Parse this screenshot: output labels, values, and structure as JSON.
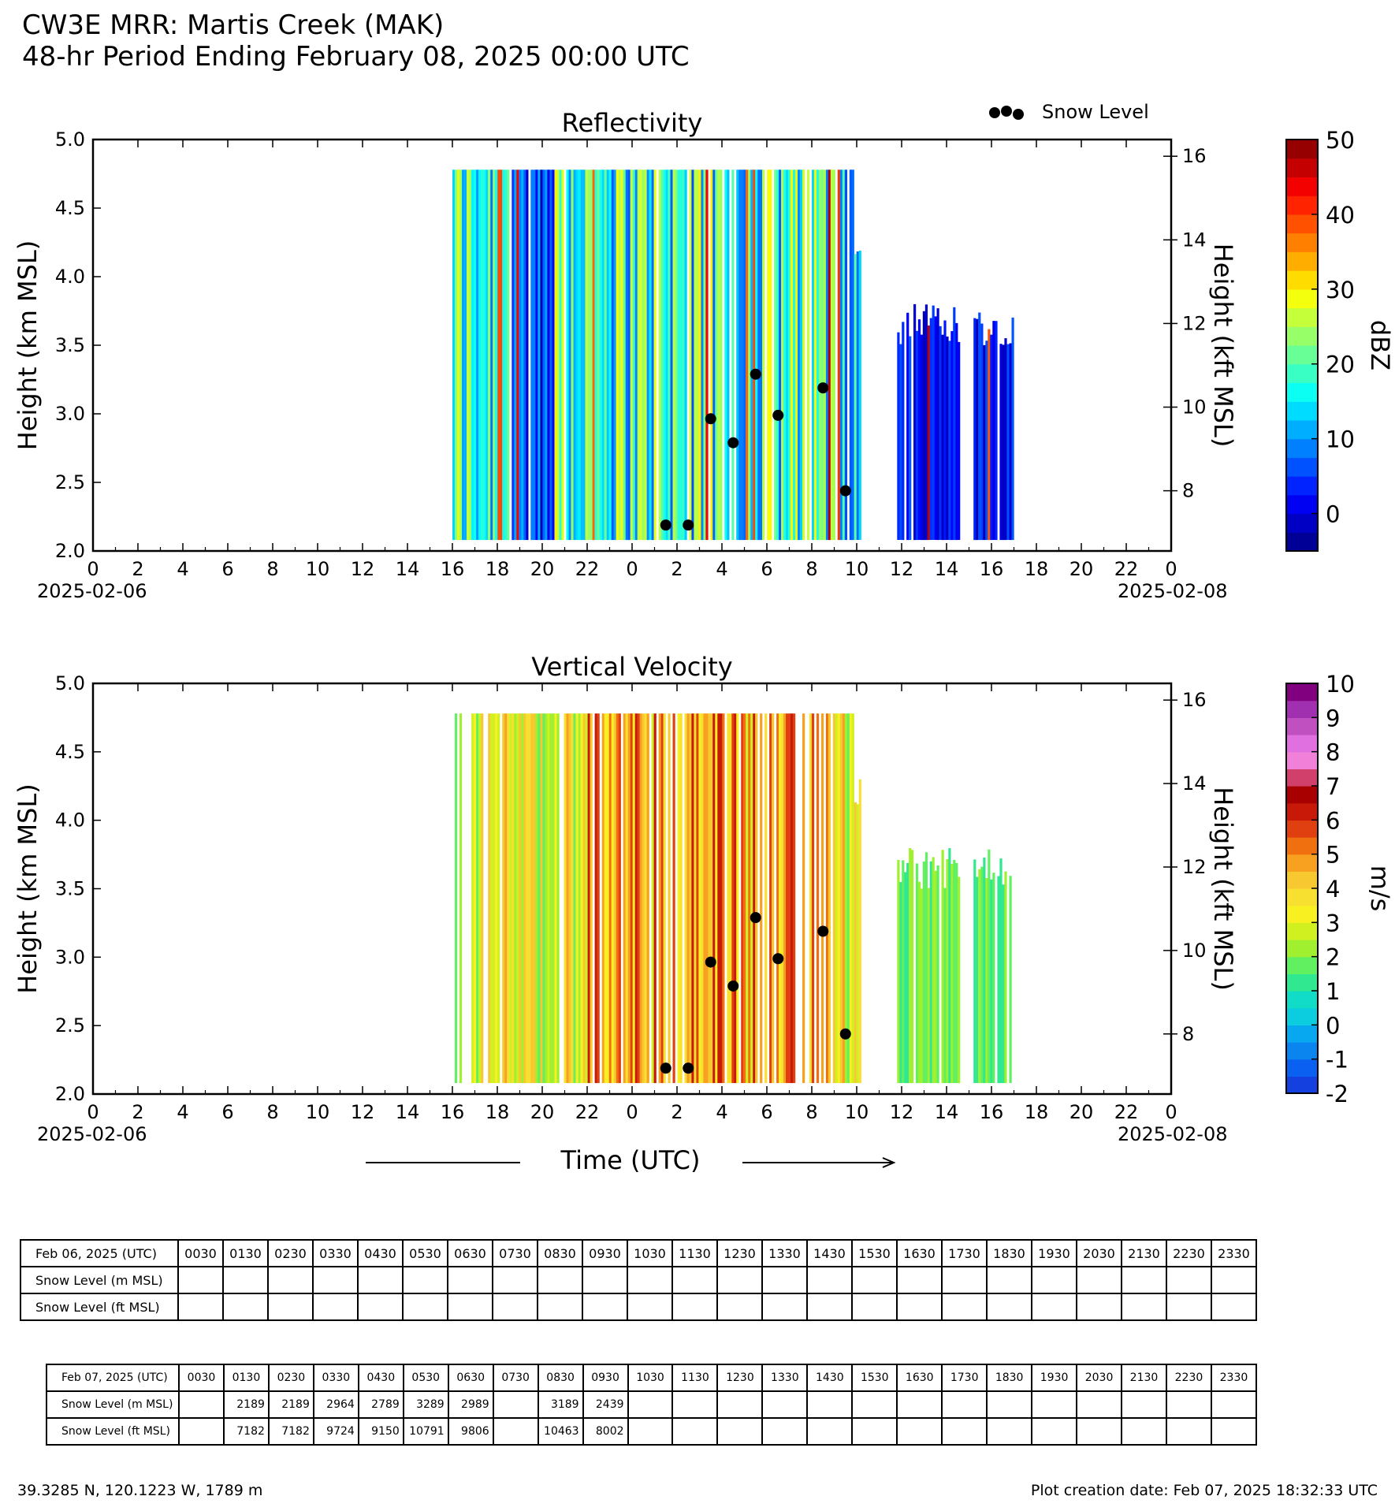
{
  "header": {
    "title_line1": "CW3E MRR: Martis Creek (MAK)",
    "title_line2": "48-hr Period Ending February 08, 2025 00:00 UTC"
  },
  "legend": {
    "snow_level_label": "Snow Level"
  },
  "x_axis": {
    "label": "Time (UTC)",
    "start_date": "2025-02-06",
    "end_date": "2025-02-08",
    "tick_labels": [
      "0",
      "2",
      "4",
      "6",
      "8",
      "10",
      "12",
      "14",
      "16",
      "18",
      "20",
      "22",
      "0",
      "2",
      "4",
      "6",
      "8",
      "10",
      "12",
      "14",
      "16",
      "18",
      "20",
      "22",
      "0"
    ]
  },
  "chart_data": [
    {
      "type": "heatmap",
      "title": "Reflectivity",
      "ylabel": "Height (km MSL)",
      "ylabel_right": "Height (kft MSL)",
      "ylim": [
        2.0,
        5.0
      ],
      "ylim_right_kft": [
        6.56,
        16.4
      ],
      "xlim_hours": [
        0,
        48
      ],
      "y_ticks": [
        "2.0",
        "2.5",
        "3.0",
        "3.5",
        "4.0",
        "4.5",
        "5.0"
      ],
      "y_ticks_right": [
        "8",
        "10",
        "12",
        "14",
        "16"
      ],
      "colorbar": {
        "label": "dBZ",
        "range": [
          -5,
          50
        ],
        "ticks": [
          "0",
          "10",
          "20",
          "30",
          "40",
          "50"
        ]
      },
      "data_coverage_hours": [
        [
          16.0,
          23.5
        ],
        [
          23.5,
          34.2
        ],
        [
          35.8,
          38.6
        ],
        [
          39.2,
          41.0
        ]
      ],
      "snow_level_points": [
        {
          "time_h": 25.5,
          "km": 2.189
        },
        {
          "time_h": 26.5,
          "km": 2.189
        },
        {
          "time_h": 27.5,
          "km": 2.964
        },
        {
          "time_h": 28.5,
          "km": 2.789
        },
        {
          "time_h": 29.5,
          "km": 3.289
        },
        {
          "time_h": 30.5,
          "km": 2.989
        },
        {
          "time_h": 32.5,
          "km": 3.189
        },
        {
          "time_h": 33.5,
          "km": 2.439
        }
      ]
    },
    {
      "type": "heatmap",
      "title": "Vertical Velocity",
      "ylabel": "Height (km MSL)",
      "ylabel_right": "Height (kft MSL)",
      "ylim": [
        2.0,
        5.0
      ],
      "ylim_right_kft": [
        6.56,
        16.4
      ],
      "xlim_hours": [
        0,
        48
      ],
      "y_ticks": [
        "2.0",
        "2.5",
        "3.0",
        "3.5",
        "4.0",
        "4.5",
        "5.0"
      ],
      "y_ticks_right": [
        "8",
        "10",
        "12",
        "14",
        "16"
      ],
      "colorbar": {
        "label": "m/s",
        "range": [
          -2,
          10
        ],
        "ticks": [
          "10",
          "9",
          "8",
          "7",
          "6",
          "5",
          "4",
          "3",
          "2",
          "1",
          "0",
          "-1",
          "-2"
        ]
      },
      "data_coverage_hours": [
        [
          16.0,
          23.5
        ],
        [
          23.5,
          34.2
        ],
        [
          35.8,
          38.6
        ],
        [
          39.2,
          41.0
        ]
      ],
      "snow_level_points": [
        {
          "time_h": 25.5,
          "km": 2.189
        },
        {
          "time_h": 26.5,
          "km": 2.189
        },
        {
          "time_h": 27.5,
          "km": 2.964
        },
        {
          "time_h": 28.5,
          "km": 2.789
        },
        {
          "time_h": 29.5,
          "km": 3.289
        },
        {
          "time_h": 30.5,
          "km": 2.989
        },
        {
          "time_h": 32.5,
          "km": 3.189
        },
        {
          "time_h": 33.5,
          "km": 2.439
        }
      ]
    },
    {
      "type": "table",
      "date_label": "Feb 06, 2025 (UTC)",
      "row_labels": [
        "Snow Level (m MSL)",
        "Snow Level (ft MSL)"
      ],
      "times": [
        "0030",
        "0130",
        "0230",
        "0330",
        "0430",
        "0530",
        "0630",
        "0730",
        "0830",
        "0930",
        "1030",
        "1130",
        "1230",
        "1330",
        "1430",
        "1530",
        "1630",
        "1730",
        "1830",
        "1930",
        "2030",
        "2130",
        "2230",
        "2330"
      ],
      "m_msl": [
        "",
        "",
        "",
        "",
        "",
        "",
        "",
        "",
        "",
        "",
        "",
        "",
        "",
        "",
        "",
        "",
        "",
        "",
        "",
        "",
        "",
        "",
        "",
        ""
      ],
      "ft_msl": [
        "",
        "",
        "",
        "",
        "",
        "",
        "",
        "",
        "",
        "",
        "",
        "",
        "",
        "",
        "",
        "",
        "",
        "",
        "",
        "",
        "",
        "",
        "",
        ""
      ]
    },
    {
      "type": "table",
      "date_label": "Feb 07, 2025 (UTC)",
      "row_labels": [
        "Snow Level (m MSL)",
        "Snow Level (ft MSL)"
      ],
      "times": [
        "0030",
        "0130",
        "0230",
        "0330",
        "0430",
        "0530",
        "0630",
        "0730",
        "0830",
        "0930",
        "1030",
        "1130",
        "1230",
        "1330",
        "1430",
        "1530",
        "1630",
        "1730",
        "1830",
        "1930",
        "2030",
        "2130",
        "2230",
        "2330"
      ],
      "m_msl": [
        "",
        "2189",
        "2189",
        "2964",
        "2789",
        "3289",
        "2989",
        "",
        "3189",
        "2439",
        "",
        "",
        "",
        "",
        "",
        "",
        "",
        "",
        "",
        "",
        "",
        "",
        "",
        ""
      ],
      "ft_msl": [
        "",
        "7182",
        "7182",
        "9724",
        "9150",
        "10791",
        "9806",
        "",
        "10463",
        "8002",
        "",
        "",
        "",
        "",
        "",
        "",
        "",
        "",
        "",
        "",
        "",
        "",
        "",
        ""
      ]
    }
  ],
  "footer": {
    "location": "39.3285 N, 120.1223 W, 1789 m",
    "creation": "Plot creation date: Feb 07, 2025 18:32:33 UTC"
  }
}
